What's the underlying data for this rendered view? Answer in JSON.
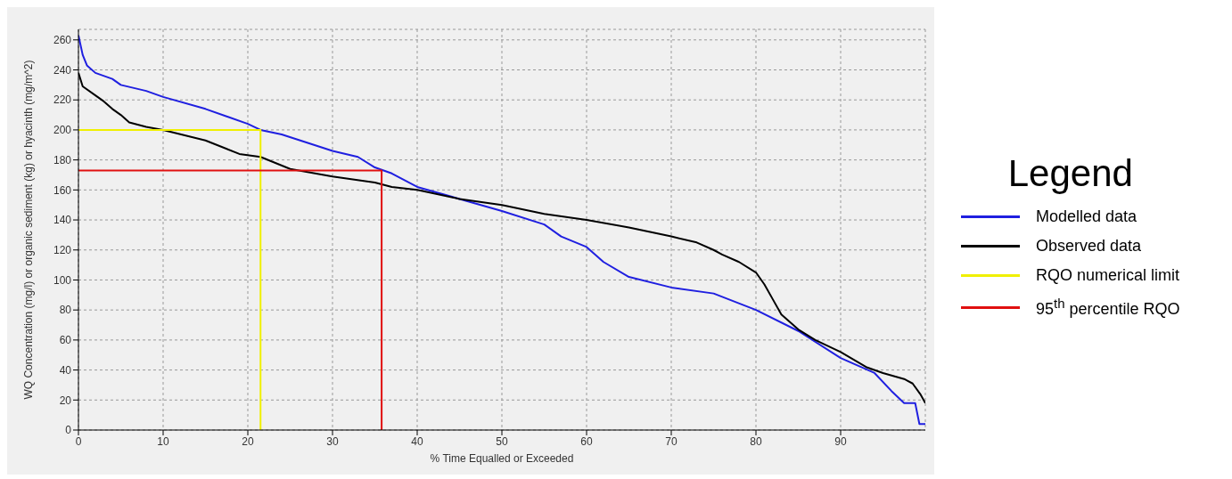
{
  "chart_data": {
    "type": "line",
    "xlabel": "% Time Equalled or Exceeded",
    "ylabel": "WQ Concentration (mg/l) or organic sediment (kg) or hyacinth (mg/m^2)",
    "legend_title": "Legend",
    "legend": "right",
    "grid": true,
    "xlim": [
      0,
      100
    ],
    "xticks": [
      0,
      10,
      20,
      30,
      40,
      50,
      60,
      70,
      80,
      90
    ],
    "ylim": [
      0,
      267
    ],
    "yticks": [
      0,
      20,
      40,
      60,
      80,
      100,
      120,
      140,
      160,
      180,
      200,
      220,
      240,
      260
    ],
    "series": [
      {
        "name": "Modelled data",
        "color": "#1f1fe0",
        "x": [
          0,
          0.5,
          1,
          2,
          4,
          5,
          8,
          10,
          15,
          20,
          21.5,
          24,
          30,
          33,
          35,
          37,
          40,
          45,
          50,
          55,
          57,
          60,
          62,
          65,
          70,
          75,
          80,
          85,
          90,
          94,
          96,
          97.5,
          98.8,
          99.3,
          100
        ],
        "values": [
          263,
          250,
          243,
          238,
          234,
          230,
          226,
          222,
          214,
          204,
          200,
          197,
          186,
          182,
          175,
          171,
          162,
          154,
          146,
          137,
          129,
          122,
          112,
          102,
          95,
          91,
          80,
          66,
          48,
          38,
          26,
          18,
          18,
          4,
          4
        ]
      },
      {
        "name": "Observed data",
        "color": "#000000",
        "x": [
          0,
          0.5,
          2,
          3,
          4,
          5,
          6,
          8,
          10,
          15,
          19,
          21.5,
          25,
          30,
          35,
          37,
          40,
          45,
          50,
          55,
          60,
          65,
          70,
          73,
          75,
          76,
          78,
          80,
          81,
          82,
          83,
          85,
          87,
          90,
          93,
          95,
          97.5,
          98.5,
          99.4,
          100
        ],
        "values": [
          238,
          229,
          223,
          219,
          214,
          210,
          205,
          202,
          200,
          193,
          184,
          182,
          174,
          169,
          165,
          162,
          160,
          154,
          150,
          144,
          140,
          135,
          129,
          125,
          120,
          117,
          112,
          105,
          97,
          87,
          77,
          67,
          60,
          52,
          42,
          38,
          34,
          31,
          24,
          18
        ]
      },
      {
        "name": "RQO numerical limit",
        "color": "#f0f000",
        "x": [
          0,
          21.5,
          21.5
        ],
        "values": [
          200,
          200,
          0
        ]
      },
      {
        "name": "95$^{th}$ percentile RQO",
        "color": "#e01010",
        "x": [
          0,
          35.8,
          35.8
        ],
        "values": [
          173,
          173,
          0
        ]
      }
    ]
  }
}
